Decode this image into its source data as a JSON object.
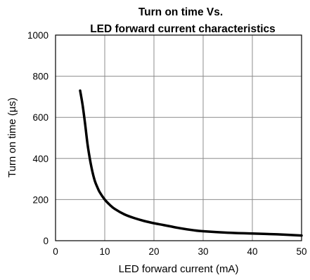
{
  "chart_data": {
    "type": "line",
    "title_lines": [
      "Turn on time Vs.",
      "LED forward current characteristics"
    ],
    "xlabel": "LED forward current (mA)",
    "ylabel": "Turn on time (µs)",
    "xlim": [
      0,
      50
    ],
    "ylim": [
      0,
      1000
    ],
    "x_ticks": [
      0,
      10,
      20,
      30,
      40,
      50
    ],
    "y_ticks": [
      0,
      200,
      400,
      600,
      800,
      1000
    ],
    "x_tick_labels": [
      "0",
      "10",
      "20",
      "30",
      "40",
      "50"
    ],
    "y_tick_labels": [
      "0",
      "200",
      "400",
      "600",
      "800",
      "1000"
    ],
    "grid": true,
    "line_color": "#000000",
    "series": [
      {
        "x": [
          5,
          5.5,
          6,
          6.5,
          7,
          7.5,
          8,
          8.5,
          9,
          10,
          11,
          12,
          14,
          16,
          18,
          20,
          22,
          25,
          28,
          30,
          35,
          40,
          45,
          50
        ],
        "y": [
          730,
          660,
          570,
          470,
          395,
          335,
          290,
          260,
          235,
          200,
          175,
          155,
          128,
          110,
          96,
          85,
          76,
          62,
          51,
          46,
          39,
          35,
          31,
          25
        ]
      }
    ]
  }
}
